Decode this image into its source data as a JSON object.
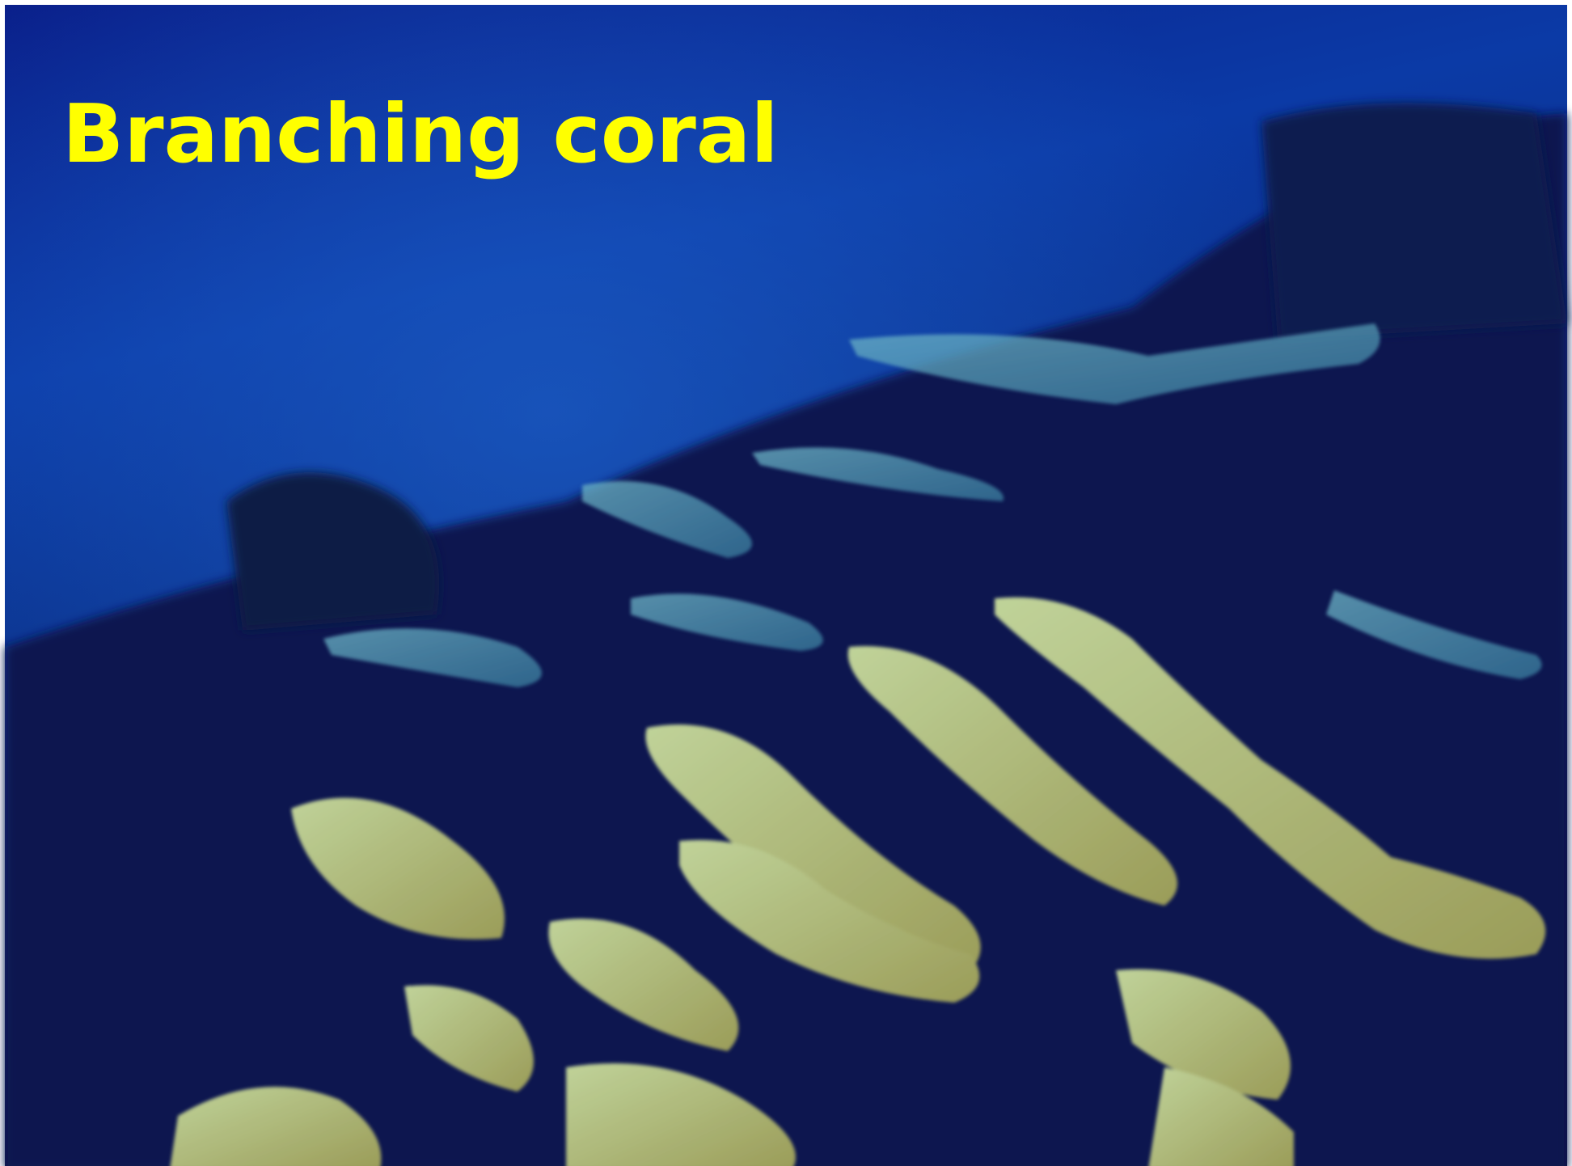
{
  "title": "Branching coral"
}
